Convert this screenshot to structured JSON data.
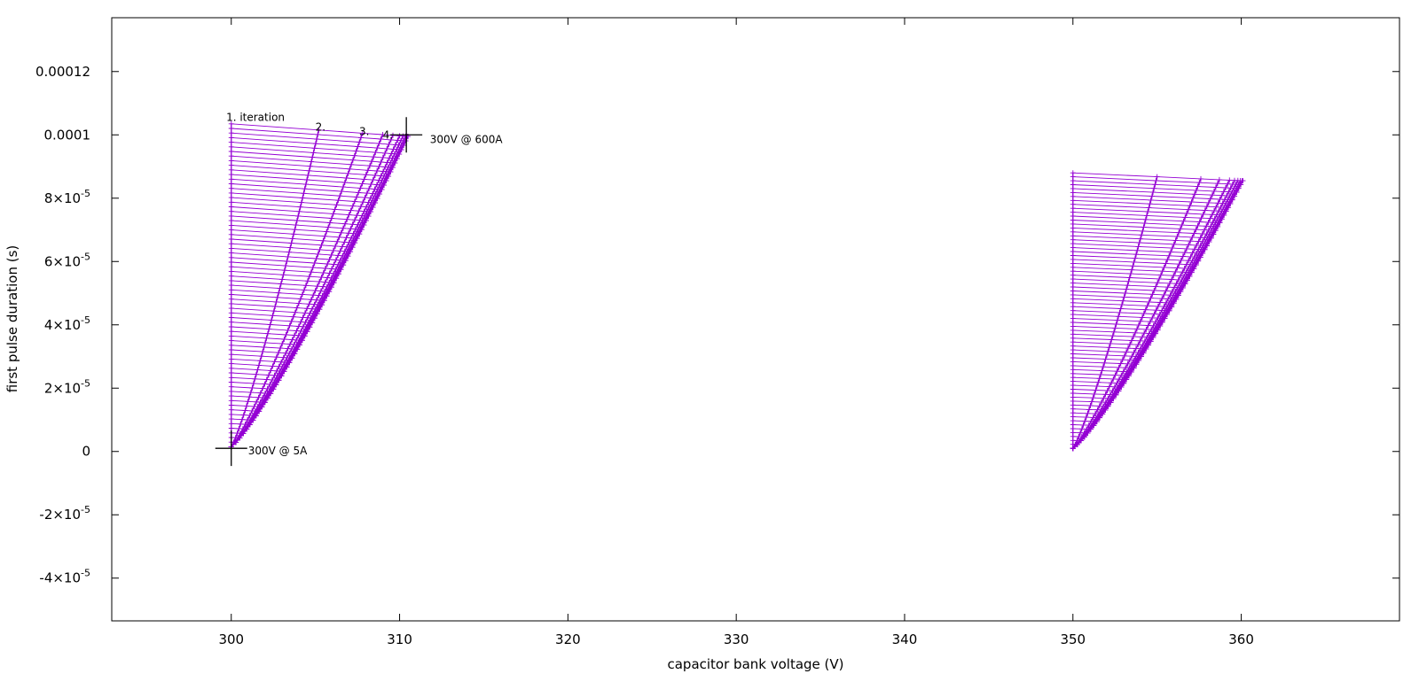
{
  "chart_data": {
    "type": "line",
    "xlabel": "capacitor bank voltage (V)",
    "ylabel": "first pulse duration (s)",
    "xlim": [
      292.9,
      369.4
    ],
    "ylim": [
      -5.35e-05,
      0.000137
    ],
    "grid": false,
    "color": "#9400d3",
    "x_ticks": [
      {
        "value": 300,
        "label": "300"
      },
      {
        "value": 310,
        "label": "310"
      },
      {
        "value": 320,
        "label": "320"
      },
      {
        "value": 330,
        "label": "330"
      },
      {
        "value": 340,
        "label": "340"
      },
      {
        "value": 350,
        "label": "350"
      },
      {
        "value": 360,
        "label": "360"
      }
    ],
    "y_ticks": [
      {
        "value": 0.00012,
        "label": "0.00012",
        "base": "",
        "exp": ""
      },
      {
        "value": 0.0001,
        "label": "0.0001",
        "base": "",
        "exp": ""
      },
      {
        "value": 8e-05,
        "label": "",
        "base": "8×10",
        "exp": "-5"
      },
      {
        "value": 6e-05,
        "label": "",
        "base": "6×10",
        "exp": "-5"
      },
      {
        "value": 4e-05,
        "label": "",
        "base": "4×10",
        "exp": "-5"
      },
      {
        "value": 2e-05,
        "label": "",
        "base": "2×10",
        "exp": "-5"
      },
      {
        "value": 0,
        "label": "0",
        "base": "",
        "exp": ""
      },
      {
        "value": -2e-05,
        "label": "",
        "base": "-2×10",
        "exp": "-5"
      },
      {
        "value": -4e-05,
        "label": "",
        "base": "-4×10",
        "exp": "-5"
      }
    ],
    "groups": [
      {
        "base_voltage": 300,
        "iteration_end_voltages": [
          300,
          305.2,
          307.8,
          309.0,
          309.6,
          310.0,
          310.2,
          310.35,
          310.45,
          310.5
        ],
        "top_pulse_duration": 0.0001035,
        "end_pulse_duration": 9.95e-05,
        "bottom_pulse_duration": 1.5e-06,
        "levels": 70
      },
      {
        "base_voltage": 350,
        "iteration_end_voltages": [
          350,
          355.0,
          357.6,
          358.7,
          359.3,
          359.6,
          359.8,
          359.95,
          360.05,
          360.1
        ],
        "top_pulse_duration": 8.8e-05,
        "end_pulse_duration": 8.55e-05,
        "bottom_pulse_duration": 1e-06,
        "levels": 70
      }
    ],
    "annotations": [
      {
        "text": "1. iteration",
        "x": 299.7,
        "y": 0.0001055
      },
      {
        "text": "2.",
        "x": 305.0,
        "y": 0.0001025
      },
      {
        "text": "3.",
        "x": 307.6,
        "y": 0.000101
      },
      {
        "text": "4.",
        "x": 309.0,
        "y": 0.0001
      },
      {
        "text": "300V @ 600A",
        "x": 311.8,
        "y": 9.85e-05
      },
      {
        "text": "300V @ 5A",
        "x": 301.0,
        "y": 2e-07
      }
    ],
    "markers": [
      {
        "x": 310.4,
        "y": 0.0001
      },
      {
        "x": 300.0,
        "y": 1e-06
      }
    ]
  }
}
